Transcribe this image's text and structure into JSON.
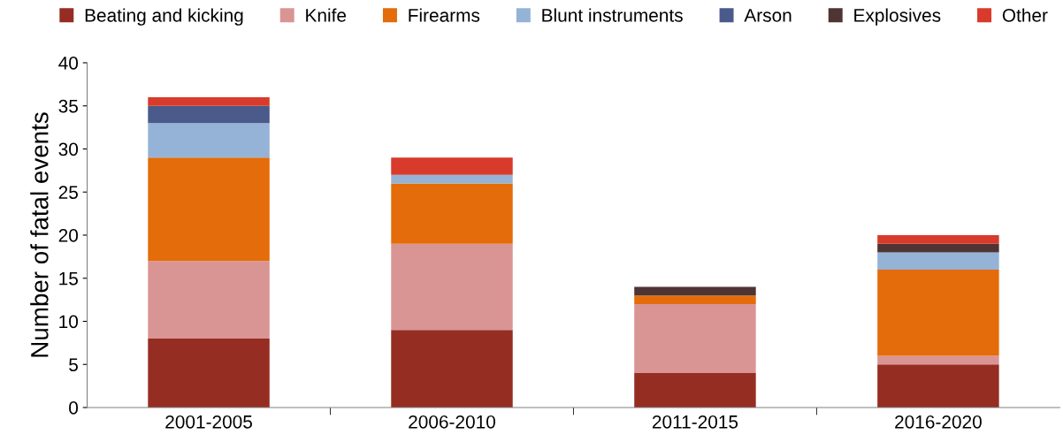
{
  "chart_data": {
    "type": "bar",
    "stacked": true,
    "ylabel": "Number of fatal events",
    "categories": [
      "2001-2005",
      "2006-2010",
      "2011-2015",
      "2016-2020"
    ],
    "series": [
      {
        "name": "Beating and kicking",
        "color": "#962d22",
        "values": [
          8,
          9,
          4,
          5
        ]
      },
      {
        "name": "Knife",
        "color": "#d99594",
        "values": [
          9,
          10,
          8,
          1
        ]
      },
      {
        "name": "Firearms",
        "color": "#e46c0a",
        "values": [
          12,
          7,
          1,
          10
        ]
      },
      {
        "name": "Blunt instruments",
        "color": "#95b3d7",
        "values": [
          4,
          1,
          0,
          2
        ]
      },
      {
        "name": "Arson",
        "color": "#4a5a8a",
        "values": [
          2,
          0,
          0,
          0
        ]
      },
      {
        "name": "Explosives",
        "color": "#4f3434",
        "values": [
          0,
          0,
          1,
          1
        ]
      },
      {
        "name": "Other",
        "color": "#d83b2b",
        "values": [
          1,
          2,
          0,
          1
        ]
      }
    ],
    "ylim": [
      0,
      40
    ],
    "yticks": [
      0,
      5,
      10,
      15,
      20,
      25,
      30,
      35,
      40
    ],
    "grid": false,
    "legend": "top"
  }
}
